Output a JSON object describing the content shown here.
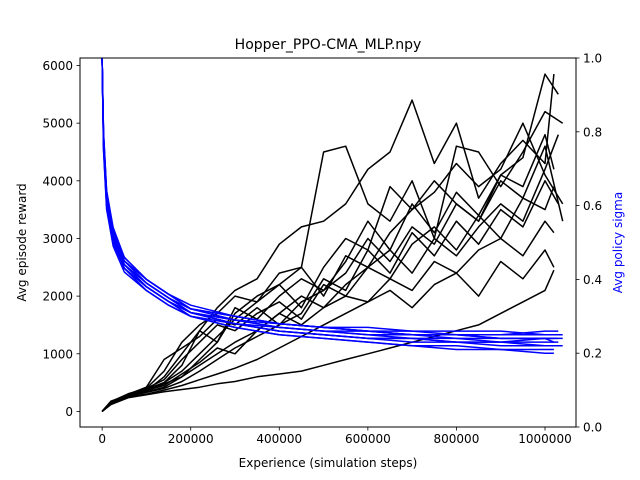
{
  "chart_data": {
    "type": "line",
    "title": "Hopper_PPO-CMA_MLP.npy",
    "xlabel": "Experience (simulation steps)",
    "ylabel": "Avg episode reward",
    "ylabel_right": "Avg policy sigma",
    "xlim": [
      -50000,
      1070000
    ],
    "ylim": [
      -270,
      6130
    ],
    "ylim_right": [
      0,
      1.0
    ],
    "xticks": [
      0,
      200000,
      400000,
      600000,
      800000,
      1000000
    ],
    "yticks": [
      0,
      1000,
      2000,
      3000,
      4000,
      5000,
      6000
    ],
    "yticks_right": [
      0.0,
      0.2,
      0.4,
      0.6,
      0.8,
      1.0
    ],
    "grid": false,
    "colors": {
      "reward": "#000000",
      "sigma": "#0000ff"
    },
    "reward_series": [
      {
        "x": [
          0,
          20000,
          60000,
          100000,
          140000,
          180000,
          220000,
          260000,
          300000,
          350000,
          400000,
          450000,
          500000,
          550000,
          600000,
          650000,
          700000,
          750000,
          800000,
          850000,
          900000,
          950000,
          1000000,
          1020000
        ],
        "values": [
          0,
          150,
          300,
          380,
          500,
          800,
          1400,
          1800,
          2100,
          2300,
          2900,
          3200,
          3300,
          3600,
          4200,
          4500,
          5400,
          4300,
          5000,
          3700,
          4300,
          4700,
          4300,
          5850
        ]
      },
      {
        "x": [
          0,
          20000,
          60000,
          100000,
          140000,
          180000,
          220000,
          260000,
          300000,
          350000,
          400000,
          450000,
          500000,
          550000,
          600000,
          650000,
          700000,
          750000,
          800000,
          850000,
          900000,
          950000,
          1000000,
          1040000
        ],
        "values": [
          0,
          180,
          280,
          400,
          700,
          1200,
          1500,
          1700,
          2000,
          1900,
          2400,
          2500,
          4500,
          4600,
          3600,
          3300,
          4000,
          3000,
          4600,
          4500,
          3900,
          4500,
          5200,
          5000
        ]
      },
      {
        "x": [
          0,
          20000,
          60000,
          100000,
          140000,
          180000,
          220000,
          260000,
          300000,
          350000,
          400000,
          450000,
          500000,
          550000,
          600000,
          650000,
          700000,
          750000,
          800000,
          850000,
          900000,
          950000,
          1000000,
          1030000
        ],
        "values": [
          0,
          160,
          290,
          350,
          480,
          600,
          900,
          1200,
          1700,
          2000,
          2200,
          1800,
          2500,
          3000,
          2800,
          3900,
          3500,
          4000,
          3600,
          3300,
          4100,
          4400,
          5850,
          5500
        ]
      },
      {
        "x": [
          0,
          20000,
          60000,
          100000,
          140000,
          180000,
          220000,
          260000,
          300000,
          350000,
          400000,
          450000,
          500000,
          550000,
          600000,
          650000,
          700000,
          750000,
          800000,
          850000,
          900000,
          950000,
          1000000,
          1040000
        ],
        "values": [
          0,
          140,
          300,
          420,
          900,
          1100,
          1300,
          1600,
          1500,
          1800,
          1500,
          1900,
          2100,
          2400,
          3000,
          2600,
          3200,
          2900,
          3600,
          3300,
          4000,
          3700,
          4600,
          3300
        ]
      },
      {
        "x": [
          0,
          20000,
          60000,
          100000,
          140000,
          180000,
          220000,
          260000,
          300000,
          350000,
          400000,
          450000,
          500000,
          550000,
          600000,
          650000,
          700000,
          750000,
          800000,
          850000,
          900000,
          950000,
          1000000,
          1030000
        ],
        "values": [
          0,
          170,
          260,
          330,
          400,
          520,
          700,
          900,
          1100,
          1300,
          1500,
          1700,
          2300,
          2100,
          2800,
          2400,
          3100,
          2700,
          3300,
          2900,
          3500,
          3200,
          4000,
          3600
        ]
      },
      {
        "x": [
          0,
          20000,
          60000,
          100000,
          140000,
          180000,
          220000,
          260000,
          300000,
          350000,
          400000,
          450000,
          500000,
          550000,
          600000,
          650000,
          700000,
          750000,
          800000,
          850000,
          900000,
          950000,
          1000000,
          1020000
        ],
        "values": [
          0,
          150,
          280,
          340,
          420,
          600,
          800,
          1000,
          1200,
          1400,
          1700,
          1500,
          1800,
          2000,
          1900,
          2300,
          2100,
          2600,
          2400,
          2800,
          3000,
          2700,
          3300,
          3100
        ]
      },
      {
        "x": [
          0,
          20000,
          60000,
          100000,
          140000,
          180000,
          220000,
          260000,
          300000,
          350000,
          400000,
          450000,
          500000,
          550000,
          600000,
          650000,
          700000,
          750000,
          800000,
          850000,
          900000,
          950000,
          1000000,
          1020000
        ],
        "values": [
          0,
          130,
          250,
          300,
          370,
          450,
          550,
          650,
          750,
          900,
          1100,
          1300,
          1500,
          1700,
          1900,
          2100,
          1800,
          2200,
          2400,
          2000,
          2600,
          2300,
          2800,
          2500
        ]
      },
      {
        "x": [
          0,
          20000,
          60000,
          100000,
          140000,
          180000,
          220000,
          260000,
          300000,
          350000,
          400000,
          450000,
          500000,
          550000,
          600000,
          650000,
          700000,
          750000,
          800000,
          850000,
          900000,
          950000,
          1000000,
          1020000
        ],
        "values": [
          0,
          120,
          240,
          290,
          340,
          380,
          420,
          480,
          520,
          600,
          650,
          700,
          800,
          900,
          1000,
          1100,
          1200,
          1300,
          1400,
          1500,
          1700,
          1900,
          2100,
          2450
        ]
      },
      {
        "x": [
          0,
          20000,
          60000,
          100000,
          140000,
          180000,
          220000,
          260000,
          300000,
          350000,
          400000,
          450000,
          500000,
          550000,
          600000,
          650000,
          700000,
          750000,
          800000,
          850000,
          900000,
          950000,
          1000000,
          1020000
        ],
        "values": [
          0,
          140,
          270,
          360,
          600,
          1000,
          1400,
          1200,
          1800,
          1600,
          2000,
          2300,
          2100,
          2600,
          3300,
          2800,
          3600,
          3100,
          3800,
          3400,
          4100,
          3900,
          4800,
          4200
        ]
      },
      {
        "x": [
          0,
          20000,
          60000,
          100000,
          140000,
          180000,
          220000,
          260000,
          300000,
          350000,
          400000,
          450000,
          500000,
          550000,
          600000,
          650000,
          700000,
          750000,
          800000,
          850000,
          900000,
          950000,
          1000000,
          1040000
        ],
        "values": [
          0,
          160,
          300,
          380,
          500,
          700,
          1000,
          1300,
          1600,
          1900,
          2200,
          2500,
          2000,
          2700,
          2500,
          3100,
          3500,
          3800,
          4300,
          3900,
          4200,
          5000,
          4100,
          3600
        ]
      },
      {
        "x": [
          0,
          20000,
          60000,
          100000,
          140000,
          180000,
          220000,
          260000,
          300000,
          350000,
          400000,
          450000,
          500000,
          550000,
          600000,
          650000,
          700000,
          750000,
          800000,
          850000,
          900000,
          950000,
          1000000,
          1020000
        ],
        "values": [
          0,
          150,
          290,
          370,
          450,
          650,
          850,
          1100,
          1000,
          1400,
          1700,
          2000,
          1800,
          2200,
          2500,
          2300,
          2900,
          3200,
          2800,
          3400,
          3000,
          3700,
          3500,
          3900
        ]
      },
      {
        "x": [
          0,
          20000,
          60000,
          100000,
          140000,
          180000,
          220000,
          260000,
          300000,
          350000,
          400000,
          450000,
          500000,
          550000,
          600000,
          650000,
          700000,
          750000,
          800000,
          850000,
          900000,
          950000,
          1000000,
          1030000
        ],
        "values": [
          0,
          170,
          310,
          400,
          550,
          900,
          1200,
          1500,
          1400,
          1700,
          1900,
          1600,
          2200,
          2000,
          2500,
          2800,
          2400,
          3000,
          2700,
          3200,
          3600,
          3300,
          4200,
          4800
        ]
      }
    ],
    "sigma_series": [
      {
        "x": [
          0,
          3000,
          10000,
          25000,
          50000,
          100000,
          150000,
          200000,
          300000,
          400000,
          500000,
          600000,
          700000,
          800000,
          900000,
          1000000,
          1030000
        ],
        "values": [
          1.0,
          0.78,
          0.62,
          0.52,
          0.45,
          0.39,
          0.35,
          0.31,
          0.29,
          0.27,
          0.26,
          0.26,
          0.25,
          0.25,
          0.25,
          0.25,
          0.25
        ]
      },
      {
        "x": [
          0,
          3000,
          10000,
          25000,
          50000,
          100000,
          150000,
          200000,
          300000,
          400000,
          500000,
          600000,
          700000,
          800000,
          900000,
          1000000,
          1020000
        ],
        "values": [
          1.0,
          0.76,
          0.6,
          0.5,
          0.43,
          0.38,
          0.34,
          0.31,
          0.28,
          0.26,
          0.25,
          0.24,
          0.24,
          0.23,
          0.23,
          0.24,
          0.24
        ]
      },
      {
        "x": [
          0,
          3000,
          10000,
          25000,
          50000,
          100000,
          150000,
          200000,
          300000,
          400000,
          500000,
          600000,
          700000,
          800000,
          900000,
          1000000,
          1030000
        ],
        "values": [
          1.0,
          0.79,
          0.63,
          0.53,
          0.46,
          0.4,
          0.36,
          0.32,
          0.3,
          0.28,
          0.27,
          0.26,
          0.26,
          0.25,
          0.25,
          0.26,
          0.26
        ]
      },
      {
        "x": [
          0,
          3000,
          10000,
          25000,
          50000,
          100000,
          150000,
          200000,
          300000,
          400000,
          500000,
          600000,
          700000,
          800000,
          900000,
          1000000,
          1040000
        ],
        "values": [
          1.0,
          0.77,
          0.61,
          0.51,
          0.44,
          0.38,
          0.34,
          0.3,
          0.28,
          0.26,
          0.25,
          0.24,
          0.23,
          0.23,
          0.22,
          0.22,
          0.22
        ]
      },
      {
        "x": [
          0,
          3000,
          10000,
          25000,
          50000,
          100000,
          150000,
          200000,
          300000,
          400000,
          500000,
          600000,
          700000,
          800000,
          900000,
          1000000,
          1020000
        ],
        "values": [
          1.0,
          0.75,
          0.59,
          0.49,
          0.42,
          0.37,
          0.33,
          0.3,
          0.27,
          0.25,
          0.24,
          0.23,
          0.22,
          0.21,
          0.21,
          0.2,
          0.2
        ]
      },
      {
        "x": [
          0,
          3000,
          10000,
          25000,
          50000,
          100000,
          150000,
          200000,
          300000,
          400000,
          500000,
          600000,
          700000,
          800000,
          900000,
          1000000,
          1020000
        ],
        "values": [
          1.0,
          0.78,
          0.62,
          0.52,
          0.44,
          0.39,
          0.35,
          0.31,
          0.29,
          0.28,
          0.27,
          0.26,
          0.25,
          0.25,
          0.24,
          0.24,
          0.23
        ]
      },
      {
        "x": [
          0,
          3000,
          10000,
          25000,
          50000,
          100000,
          150000,
          200000,
          300000,
          400000,
          500000,
          600000,
          700000,
          800000,
          900000,
          1000000,
          1040000
        ],
        "values": [
          1.0,
          0.8,
          0.64,
          0.54,
          0.46,
          0.4,
          0.36,
          0.33,
          0.3,
          0.28,
          0.27,
          0.27,
          0.26,
          0.26,
          0.26,
          0.25,
          0.25
        ]
      },
      {
        "x": [
          0,
          3000,
          10000,
          25000,
          50000,
          100000,
          150000,
          200000,
          300000,
          400000,
          500000,
          600000,
          700000,
          800000,
          900000,
          1000000,
          1030000
        ],
        "values": [
          1.0,
          0.77,
          0.61,
          0.51,
          0.43,
          0.38,
          0.34,
          0.31,
          0.28,
          0.27,
          0.26,
          0.25,
          0.24,
          0.24,
          0.23,
          0.23,
          0.23
        ]
      },
      {
        "x": [
          0,
          3000,
          10000,
          25000,
          50000,
          100000,
          150000,
          200000,
          300000,
          400000,
          500000,
          600000,
          700000,
          800000,
          900000,
          1000000,
          1020000
        ],
        "values": [
          1.0,
          0.76,
          0.6,
          0.5,
          0.43,
          0.37,
          0.33,
          0.3,
          0.27,
          0.25,
          0.24,
          0.23,
          0.22,
          0.22,
          0.21,
          0.21,
          0.21
        ]
      },
      {
        "x": [
          0,
          3000,
          10000,
          25000,
          50000,
          100000,
          150000,
          200000,
          300000,
          400000,
          500000,
          600000,
          700000,
          800000,
          900000,
          1000000,
          1040000
        ],
        "values": [
          1.0,
          0.79,
          0.63,
          0.53,
          0.45,
          0.39,
          0.35,
          0.32,
          0.29,
          0.27,
          0.26,
          0.25,
          0.25,
          0.24,
          0.24,
          0.24,
          0.24
        ]
      },
      {
        "x": [
          0,
          3000,
          10000,
          25000,
          50000,
          100000,
          150000,
          200000,
          300000,
          400000,
          500000,
          600000,
          700000,
          800000,
          900000,
          1000000,
          1020000
        ],
        "values": [
          1.0,
          0.78,
          0.62,
          0.52,
          0.44,
          0.38,
          0.34,
          0.31,
          0.28,
          0.26,
          0.25,
          0.24,
          0.24,
          0.23,
          0.23,
          0.22,
          0.22
        ]
      },
      {
        "x": [
          0,
          3000,
          10000,
          25000,
          50000,
          100000,
          150000,
          200000,
          300000,
          400000,
          500000,
          600000,
          700000,
          800000,
          900000,
          1000000,
          1030000
        ],
        "values": [
          1.0,
          0.8,
          0.64,
          0.53,
          0.45,
          0.4,
          0.36,
          0.32,
          0.3,
          0.28,
          0.27,
          0.26,
          0.25,
          0.25,
          0.24,
          0.24,
          0.24
        ]
      }
    ]
  }
}
